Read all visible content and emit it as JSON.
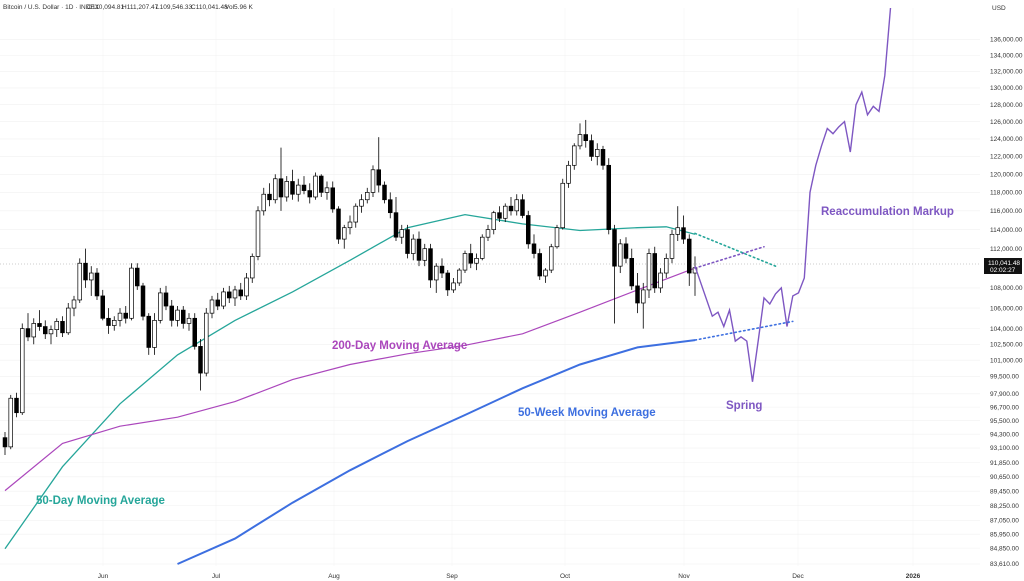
{
  "header": {
    "symbol": "Bitcoin / U.S. Dollar · 1D · INDEX",
    "open": "O110,094.81",
    "high": "H111,207.47",
    "low": "L109,546.33",
    "close": "C110,041.48",
    "volume": "Vol5.96 K"
  },
  "price_axis": {
    "currency": "USD",
    "current_price": "110,041.48",
    "countdown": "02:02:27"
  },
  "colors": {
    "ma50d": "#26a69a",
    "ma200d": "#ab47bc",
    "ma50w": "#3d6fe0",
    "projection": "#7e57c2",
    "candle_up": "#ffffff",
    "candle_down": "#000000"
  },
  "chart_data": {
    "type": "line",
    "title": "",
    "xlabel": "",
    "ylabel": "",
    "scale": "log",
    "ylim": [
      83610,
      140000
    ],
    "x_ticks": [
      "Jun",
      "Jul",
      "Aug",
      "Sep",
      "Oct",
      "Nov",
      "Dec",
      "2026"
    ],
    "y_ticks": [
      "136,000.00",
      "134,000.00",
      "132,000.00",
      "130,000.00",
      "128,000.00",
      "126,000.00",
      "124,000.00",
      "122,000.00",
      "120,000.00",
      "118,000.00",
      "116,000.00",
      "114,000.00",
      "112,000.00",
      "108,000.00",
      "106,000.00",
      "104,000.00",
      "102,500.00",
      "101,000.00",
      "99,500.00",
      "97,900.00",
      "96,700.00",
      "95,500.00",
      "94,300.00",
      "93,100.00",
      "91,850.00",
      "90,650.00",
      "89,450.00",
      "88,250.00",
      "87,050.00",
      "85,950.00",
      "84,850.00",
      "83,610.00"
    ],
    "candles": [
      [
        94.0,
        94.5,
        92.5,
        93.2
      ],
      [
        93.2,
        97.8,
        93.0,
        97.5
      ],
      [
        97.5,
        98.0,
        95.8,
        96.2
      ],
      [
        96.2,
        104.5,
        96.0,
        104.0
      ],
      [
        104.0,
        105.5,
        102.8,
        103.2
      ],
      [
        103.2,
        105.0,
        102.5,
        104.5
      ],
      [
        104.5,
        105.8,
        103.8,
        104.2
      ],
      [
        104.2,
        104.8,
        103.0,
        103.5
      ],
      [
        103.5,
        104.3,
        102.5,
        103.9
      ],
      [
        103.9,
        105.0,
        103.2,
        104.7
      ],
      [
        104.7,
        105.2,
        103.2,
        103.6
      ],
      [
        103.6,
        106.5,
        103.4,
        106.0
      ],
      [
        106.0,
        107.2,
        105.2,
        106.8
      ],
      [
        106.8,
        111.0,
        106.5,
        110.5
      ],
      [
        110.5,
        112.0,
        108.0,
        108.8
      ],
      [
        108.8,
        110.2,
        107.2,
        109.5
      ],
      [
        109.5,
        110.0,
        106.8,
        107.2
      ],
      [
        107.2,
        107.8,
        104.8,
        105.0
      ],
      [
        105.0,
        106.0,
        103.5,
        104.3
      ],
      [
        104.3,
        105.2,
        103.8,
        104.8
      ],
      [
        104.8,
        106.0,
        104.2,
        105.5
      ],
      [
        105.5,
        106.2,
        104.5,
        105.0
      ],
      [
        105.0,
        110.5,
        104.8,
        110.0
      ],
      [
        110.0,
        110.5,
        107.8,
        108.2
      ],
      [
        108.2,
        108.5,
        104.8,
        105.2
      ],
      [
        105.2,
        105.5,
        101.5,
        102.2
      ],
      [
        102.2,
        105.5,
        101.5,
        104.8
      ],
      [
        104.8,
        108.0,
        104.5,
        107.5
      ],
      [
        107.5,
        108.2,
        105.8,
        106.2
      ],
      [
        106.2,
        106.8,
        104.2,
        104.8
      ],
      [
        104.8,
        106.2,
        104.2,
        105.8
      ],
      [
        105.8,
        106.2,
        104.0,
        104.5
      ],
      [
        104.5,
        105.5,
        103.8,
        105.0
      ],
      [
        105.0,
        105.5,
        102.0,
        102.3
      ],
      [
        102.3,
        103.0,
        98.2,
        99.8
      ],
      [
        99.8,
        106.0,
        99.5,
        105.5
      ],
      [
        105.5,
        107.2,
        105.0,
        106.8
      ],
      [
        106.8,
        107.5,
        105.8,
        106.2
      ],
      [
        106.2,
        108.0,
        105.9,
        107.6
      ],
      [
        107.6,
        108.2,
        106.5,
        107.0
      ],
      [
        107.0,
        108.2,
        106.2,
        107.8
      ],
      [
        107.8,
        108.5,
        106.8,
        107.2
      ],
      [
        107.2,
        109.5,
        106.8,
        109.0
      ],
      [
        109.0,
        111.5,
        108.5,
        111.2
      ],
      [
        111.2,
        116.5,
        110.8,
        116.0
      ],
      [
        116.0,
        118.5,
        115.5,
        117.8
      ],
      [
        117.8,
        119.0,
        116.5,
        117.2
      ],
      [
        117.2,
        120.0,
        116.8,
        119.5
      ],
      [
        119.5,
        123.0,
        116.0,
        117.5
      ],
      [
        117.5,
        119.8,
        117.0,
        119.2
      ],
      [
        119.2,
        120.5,
        117.2,
        117.8
      ],
      [
        117.8,
        119.5,
        117.0,
        118.8
      ],
      [
        118.8,
        119.8,
        117.8,
        118.2
      ],
      [
        118.2,
        119.0,
        116.8,
        117.5
      ],
      [
        117.5,
        120.2,
        117.2,
        119.8
      ],
      [
        119.8,
        120.0,
        117.5,
        118.0
      ],
      [
        118.0,
        119.2,
        117.2,
        118.5
      ],
      [
        118.5,
        119.2,
        115.8,
        116.2
      ],
      [
        116.2,
        116.5,
        112.5,
        113.0
      ],
      [
        113.0,
        114.5,
        112.0,
        114.2
      ],
      [
        114.2,
        115.5,
        113.5,
        114.8
      ],
      [
        114.8,
        116.8,
        114.2,
        116.5
      ],
      [
        116.5,
        117.8,
        115.8,
        117.2
      ],
      [
        117.2,
        118.5,
        116.8,
        118.0
      ],
      [
        118.0,
        121.0,
        117.5,
        120.5
      ],
      [
        120.5,
        124.2,
        118.0,
        118.8
      ],
      [
        118.8,
        119.2,
        116.8,
        117.2
      ],
      [
        117.2,
        118.0,
        115.2,
        115.8
      ],
      [
        115.8,
        117.5,
        112.8,
        113.2
      ],
      [
        113.2,
        114.5,
        112.5,
        114.0
      ],
      [
        114.0,
        114.5,
        111.0,
        111.5
      ],
      [
        111.5,
        113.5,
        110.8,
        113.0
      ],
      [
        113.0,
        113.8,
        110.2,
        110.8
      ],
      [
        110.8,
        112.5,
        110.2,
        112.0
      ],
      [
        112.0,
        112.5,
        108.0,
        108.8
      ],
      [
        108.8,
        110.5,
        107.5,
        110.2
      ],
      [
        110.2,
        111.0,
        109.0,
        109.5
      ],
      [
        109.5,
        109.8,
        107.2,
        107.8
      ],
      [
        107.8,
        109.0,
        107.5,
        108.5
      ],
      [
        108.5,
        110.0,
        108.2,
        109.8
      ],
      [
        109.8,
        111.8,
        109.5,
        111.5
      ],
      [
        111.5,
        112.5,
        110.0,
        110.5
      ],
      [
        110.5,
        111.5,
        109.8,
        111.0
      ],
      [
        111.0,
        113.5,
        110.8,
        113.2
      ],
      [
        113.2,
        114.5,
        112.8,
        114.0
      ],
      [
        114.0,
        116.0,
        113.5,
        115.8
      ],
      [
        115.8,
        116.5,
        114.8,
        115.2
      ],
      [
        115.2,
        116.8,
        114.8,
        116.5
      ],
      [
        116.5,
        117.5,
        115.5,
        116.0
      ],
      [
        116.0,
        117.8,
        115.5,
        117.2
      ],
      [
        117.2,
        117.8,
        115.2,
        115.5
      ],
      [
        115.5,
        116.0,
        112.0,
        112.5
      ],
      [
        112.5,
        113.5,
        111.0,
        111.5
      ],
      [
        111.5,
        112.0,
        108.8,
        109.2
      ],
      [
        109.2,
        110.0,
        108.5,
        109.8
      ],
      [
        109.8,
        112.5,
        109.5,
        112.2
      ],
      [
        112.2,
        114.5,
        112.0,
        114.2
      ],
      [
        114.2,
        119.5,
        114.0,
        119.0
      ],
      [
        119.0,
        121.5,
        118.5,
        121.0
      ],
      [
        121.0,
        123.5,
        120.5,
        123.2
      ],
      [
        123.2,
        125.8,
        122.8,
        124.5
      ],
      [
        124.5,
        126.2,
        123.0,
        123.8
      ],
      [
        123.8,
        124.5,
        121.5,
        122.0
      ],
      [
        122.0,
        123.5,
        121.0,
        122.8
      ],
      [
        122.8,
        123.2,
        120.5,
        121.0
      ],
      [
        121.0,
        121.8,
        113.5,
        114.0
      ],
      [
        114.0,
        114.5,
        104.5,
        110.2
      ],
      [
        110.2,
        113.0,
        109.5,
        112.5
      ],
      [
        112.5,
        113.2,
        110.5,
        111.0
      ],
      [
        111.0,
        112.0,
        107.8,
        108.2
      ],
      [
        108.2,
        109.5,
        105.5,
        106.5
      ],
      [
        106.5,
        108.5,
        104.0,
        107.8
      ],
      [
        107.8,
        112.0,
        107.0,
        111.5
      ],
      [
        111.5,
        112.2,
        107.5,
        108.0
      ],
      [
        108.0,
        110.0,
        107.5,
        109.5
      ],
      [
        109.5,
        111.5,
        109.0,
        111.0
      ],
      [
        111.0,
        114.0,
        110.5,
        113.5
      ],
      [
        113.5,
        116.5,
        112.8,
        114.2
      ],
      [
        114.2,
        115.5,
        112.5,
        113.0
      ],
      [
        113.0,
        113.5,
        108.2,
        109.5
      ],
      [
        109.5,
        111.2,
        107.2,
        110.04
      ]
    ],
    "series": [
      {
        "name": "50-Day Moving Average",
        "points": [
          [
            0,
            84.8
          ],
          [
            10,
            91.5
          ],
          [
            20,
            97.0
          ],
          [
            30,
            101.5
          ],
          [
            40,
            104.8
          ],
          [
            50,
            107.6
          ],
          [
            60,
            110.8
          ],
          [
            70,
            114.2
          ],
          [
            80,
            115.6
          ],
          [
            90,
            114.6
          ],
          [
            100,
            113.9
          ],
          [
            110,
            114.2
          ],
          [
            115,
            114.3
          ],
          [
            120,
            113.5
          ]
        ]
      },
      {
        "name": "200-Day Moving Average",
        "points": [
          [
            0,
            89.5
          ],
          [
            10,
            93.5
          ],
          [
            20,
            95.0
          ],
          [
            30,
            95.8
          ],
          [
            40,
            97.2
          ],
          [
            50,
            99.2
          ],
          [
            60,
            100.6
          ],
          [
            70,
            101.6
          ],
          [
            80,
            102.4
          ],
          [
            90,
            103.5
          ],
          [
            100,
            105.6
          ],
          [
            110,
            107.8
          ],
          [
            120,
            110.0
          ]
        ]
      },
      {
        "name": "50-Week Moving Average",
        "points": [
          [
            30,
            83.61
          ],
          [
            40,
            85.6
          ],
          [
            50,
            88.5
          ],
          [
            60,
            91.2
          ],
          [
            70,
            93.7
          ],
          [
            80,
            96.0
          ],
          [
            90,
            98.4
          ],
          [
            100,
            100.6
          ],
          [
            110,
            102.2
          ],
          [
            120,
            102.9
          ]
        ]
      }
    ],
    "projections": {
      "path": [
        [
          120,
          110.2
        ],
        [
          123,
          105.2
        ],
        [
          124,
          105.6
        ],
        [
          125,
          104.2
        ],
        [
          126,
          105.8
        ],
        [
          127,
          102.8
        ],
        [
          128,
          103.2
        ],
        [
          129,
          102.8
        ],
        [
          130,
          99.0
        ],
        [
          131,
          102.9
        ],
        [
          132,
          107.0
        ],
        [
          133,
          106.4
        ],
        [
          134,
          107.4
        ],
        [
          135,
          108.0
        ],
        [
          136,
          104.2
        ],
        [
          137,
          107.2
        ],
        [
          138,
          107.5
        ],
        [
          139,
          109.0
        ],
        [
          140,
          118.0
        ],
        [
          141,
          121.0
        ],
        [
          142,
          123.2
        ],
        [
          143,
          125.2
        ],
        [
          144,
          124.6
        ],
        [
          145,
          125.4
        ],
        [
          146,
          126.0
        ],
        [
          147,
          122.5
        ],
        [
          148,
          128.0
        ],
        [
          149,
          129.5
        ],
        [
          150,
          126.8
        ],
        [
          151,
          127.8
        ],
        [
          152,
          127.2
        ],
        [
          153,
          131.5
        ],
        [
          154,
          140.0
        ]
      ],
      "trendlines": [
        {
          "color": "#3d6fe0",
          "points": [
            [
              120,
              102.9
            ],
            [
              137,
              104.7
            ]
          ]
        },
        {
          "color": "#7e57c2",
          "points": [
            [
              120,
              110.0
            ],
            [
              132,
              112.2
            ]
          ]
        },
        {
          "color": "#26a69a",
          "points": [
            [
              120,
              113.6
            ],
            [
              134,
              110.2
            ]
          ]
        }
      ]
    },
    "annotations": [
      {
        "text": "Reaccumulation Markup",
        "color": "#7e57c2"
      },
      {
        "text": "200-Day Moving Average",
        "color": "#ab47bc"
      },
      {
        "text": "Spring",
        "color": "#7e57c2"
      },
      {
        "text": "50-Week Moving Average",
        "color": "#3d6fe0"
      },
      {
        "text": "50-Day Moving Average",
        "color": "#26a69a"
      }
    ]
  }
}
